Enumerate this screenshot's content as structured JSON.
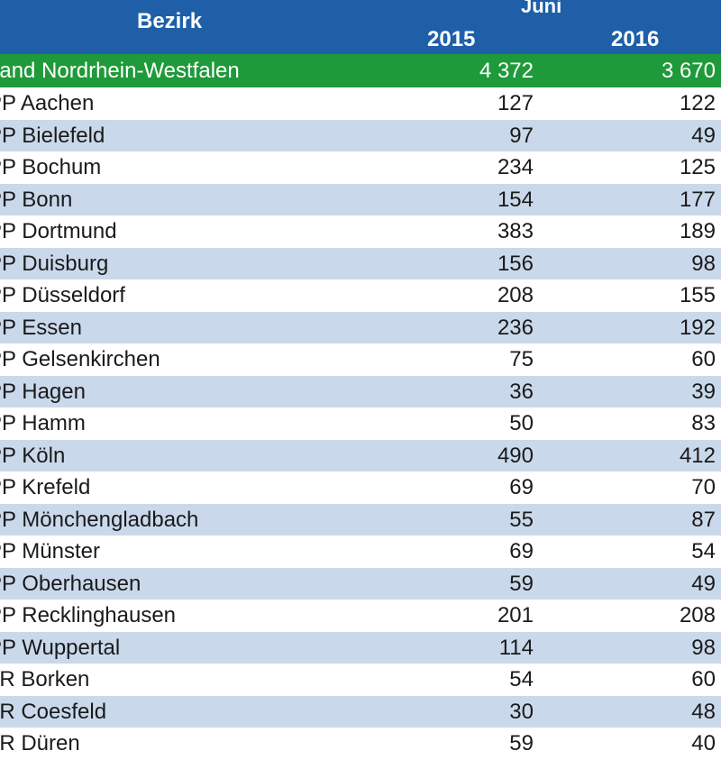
{
  "header": {
    "col_label": "Bezirk",
    "period": "Juni",
    "year1": "2015",
    "year2": "2016"
  },
  "total": {
    "name": "Land Nordrhein-Westfalen",
    "v2015": "4 372",
    "v2016": "3 670"
  },
  "rows": [
    {
      "name": "PP Aachen",
      "v2015": "127",
      "v2016": "122"
    },
    {
      "name": "PP Bielefeld",
      "v2015": "97",
      "v2016": "49"
    },
    {
      "name": "PP Bochum",
      "v2015": "234",
      "v2016": "125"
    },
    {
      "name": "PP Bonn",
      "v2015": "154",
      "v2016": "177"
    },
    {
      "name": "PP Dortmund",
      "v2015": "383",
      "v2016": "189"
    },
    {
      "name": "PP Duisburg",
      "v2015": "156",
      "v2016": "98"
    },
    {
      "name": "PP Düsseldorf",
      "v2015": "208",
      "v2016": "155"
    },
    {
      "name": "PP Essen",
      "v2015": "236",
      "v2016": "192"
    },
    {
      "name": "PP Gelsenkirchen",
      "v2015": "75",
      "v2016": "60"
    },
    {
      "name": "PP Hagen",
      "v2015": "36",
      "v2016": "39"
    },
    {
      "name": "PP Hamm",
      "v2015": "50",
      "v2016": "83"
    },
    {
      "name": "PP Köln",
      "v2015": "490",
      "v2016": "412"
    },
    {
      "name": "PP Krefeld",
      "v2015": "69",
      "v2016": "70"
    },
    {
      "name": "PP Mönchengladbach",
      "v2015": "55",
      "v2016": "87"
    },
    {
      "name": "PP Münster",
      "v2015": "69",
      "v2016": "54"
    },
    {
      "name": "PP Oberhausen",
      "v2015": "59",
      "v2016": "49"
    },
    {
      "name": "PP Recklinghausen",
      "v2015": "201",
      "v2016": "208"
    },
    {
      "name": "PP Wuppertal",
      "v2015": "114",
      "v2016": "98"
    },
    {
      "name": "LR Borken",
      "v2015": "54",
      "v2016": "60"
    },
    {
      "name": "LR Coesfeld",
      "v2015": "30",
      "v2016": "48"
    },
    {
      "name": "LR Düren",
      "v2015": "59",
      "v2016": "40"
    }
  ]
}
